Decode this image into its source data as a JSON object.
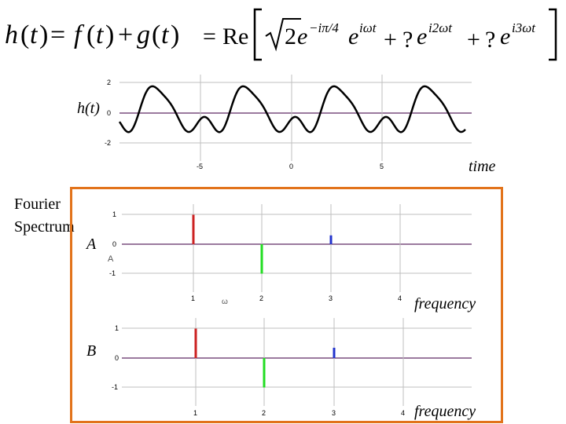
{
  "equation": {
    "h": "h",
    "f": "f",
    "g": "g",
    "t": "t",
    "eq": "=",
    "plus": "+",
    "lparen": "(",
    "rparen": ")",
    "re": "Re",
    "two": "2",
    "e": "e",
    "exp1": "−iπ/4",
    "exp2": "iωt",
    "exp3": "i2ωt",
    "exp4": "i3ωt",
    "q": "?"
  },
  "labels": {
    "h_of_t": "h(t)",
    "time": "time",
    "fourier_title_line1": "Fourier",
    "fourier_title_line2": "Spectrum",
    "A": "A",
    "B": "B",
    "frequency": "frequency",
    "inner_A": "A",
    "inner_omega": "ω"
  },
  "colors": {
    "curve": "#000000",
    "axis": "#7a4f7e",
    "grid": "#bfbfbf",
    "frame": "#e2731b",
    "red": "#cc2222",
    "green": "#22dd22",
    "blue": "#2233cc"
  },
  "chart_data": [
    {
      "type": "line",
      "name": "time-signal",
      "x_ticks": [
        "-5",
        "0",
        "5"
      ],
      "y_ticks": [
        "2",
        "0",
        "-2"
      ],
      "ylim": [
        -3,
        3
      ],
      "xlim": [
        -10,
        10
      ],
      "function": "h(t) = cos(t) + 0.5 sin(2t - ...) style periodic waveform"
    },
    {
      "type": "bar",
      "name": "spectrum-A",
      "x_ticks": [
        "1",
        "2",
        "3",
        "4"
      ],
      "y_ticks": [
        "1",
        "0",
        "-1"
      ],
      "ylim": [
        -1.2,
        1.4
      ],
      "x": [
        1,
        2,
        3
      ],
      "values": [
        1.0,
        -1.0,
        0.3
      ],
      "colors": [
        "red",
        "green",
        "blue"
      ]
    },
    {
      "type": "bar",
      "name": "spectrum-B",
      "x_ticks": [
        "1",
        "2",
        "3",
        "4"
      ],
      "y_ticks": [
        "1",
        "0",
        "-1"
      ],
      "ylim": [
        -1.2,
        1.4
      ],
      "x": [
        1,
        2,
        3
      ],
      "values": [
        1.0,
        -1.0,
        0.35
      ],
      "colors": [
        "red",
        "green",
        "blue"
      ]
    }
  ]
}
